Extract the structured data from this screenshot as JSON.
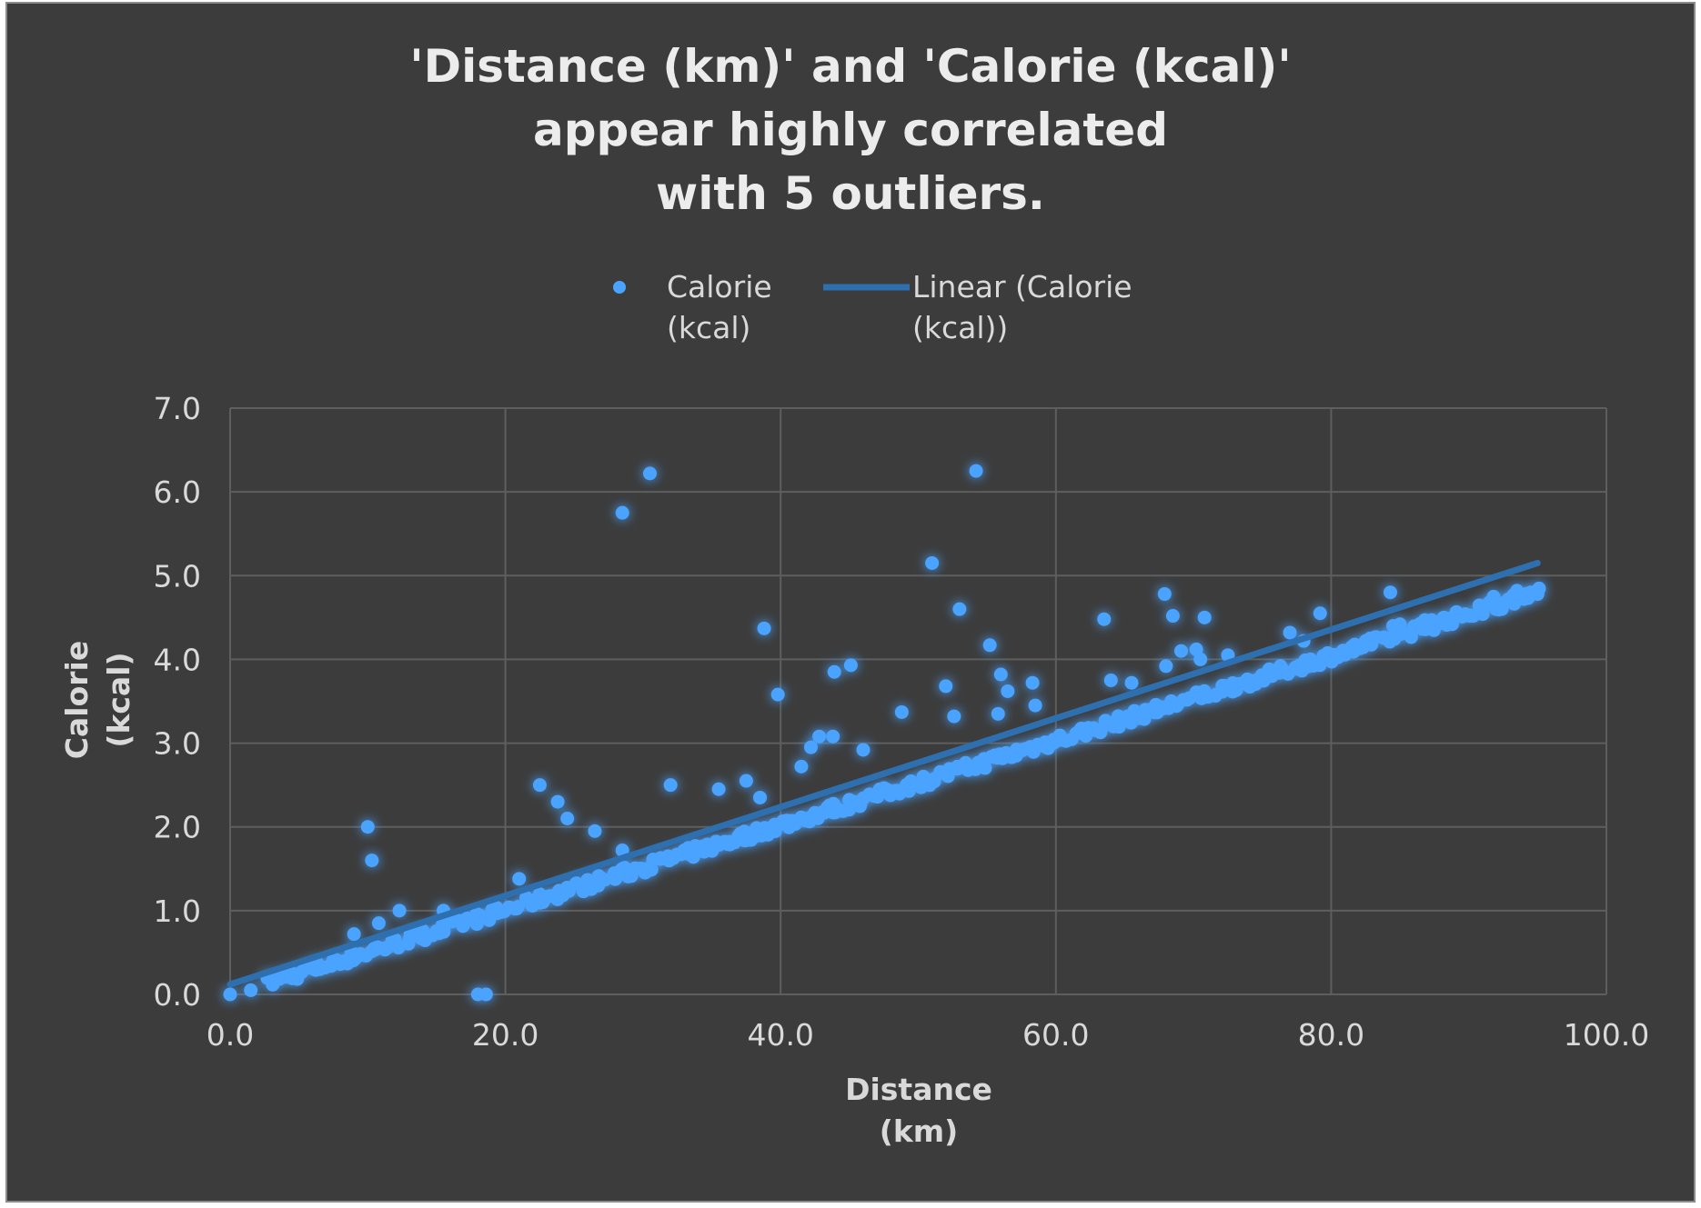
{
  "chart_data": {
    "type": "scatter",
    "title_lines": [
      "'Distance (km)' and 'Calorie (kcal)'",
      "appear highly correlated",
      "with 5 outliers."
    ],
    "xlabel_lines": [
      "Distance",
      "(km)"
    ],
    "ylabel_lines": [
      "Calorie",
      "(kcal)"
    ],
    "xlim": [
      0,
      100
    ],
    "ylim": [
      0,
      7
    ],
    "x_ticks": [
      "0.0",
      "20.0",
      "40.0",
      "60.0",
      "80.0",
      "100.0"
    ],
    "y_ticks": [
      "0.0",
      "1.0",
      "2.0",
      "3.0",
      "4.0",
      "5.0",
      "6.0",
      "7.0"
    ],
    "grid": true,
    "legend_placement": "top",
    "series": [
      {
        "name_lines": [
          "Calorie",
          "(kcal)"
        ],
        "color": "#4aa3ff",
        "trend_main": {
          "x_start": 3,
          "x_end": 95,
          "slope": 0.0505,
          "intercept": 0.0,
          "count": 420
        },
        "points": [
          [
            0,
            0
          ],
          [
            1.5,
            0.05
          ],
          [
            18,
            0
          ],
          [
            18.6,
            0
          ],
          [
            10,
            2.0
          ],
          [
            10.3,
            1.6
          ],
          [
            12.3,
            1.0
          ],
          [
            10.8,
            0.85
          ],
          [
            9,
            0.72
          ],
          [
            15.5,
            1.0
          ],
          [
            22.5,
            2.5
          ],
          [
            23.8,
            2.3
          ],
          [
            24.5,
            2.1
          ],
          [
            26.5,
            1.95
          ],
          [
            28.5,
            1.72
          ],
          [
            21,
            1.38
          ],
          [
            28.5,
            5.75
          ],
          [
            30.5,
            6.22
          ],
          [
            32,
            2.5
          ],
          [
            35.5,
            2.45
          ],
          [
            37.5,
            2.55
          ],
          [
            38.8,
            4.37
          ],
          [
            39.8,
            3.58
          ],
          [
            38.5,
            2.35
          ],
          [
            35,
            1.75
          ],
          [
            41.5,
            2.72
          ],
          [
            42.2,
            2.95
          ],
          [
            42.8,
            3.08
          ],
          [
            43.8,
            3.08
          ],
          [
            43.9,
            3.85
          ],
          [
            45.1,
            3.93
          ],
          [
            46,
            2.92
          ],
          [
            48.8,
            3.37
          ],
          [
            51,
            5.15
          ],
          [
            52,
            3.68
          ],
          [
            52.6,
            3.32
          ],
          [
            53,
            4.6
          ],
          [
            54.2,
            6.25
          ],
          [
            55.2,
            4.17
          ],
          [
            56,
            3.82
          ],
          [
            56.5,
            3.62
          ],
          [
            55.8,
            3.35
          ],
          [
            58.3,
            3.72
          ],
          [
            58.5,
            3.45
          ],
          [
            63.5,
            4.48
          ],
          [
            64,
            3.75
          ],
          [
            65.5,
            3.72
          ],
          [
            66.5,
            3.4
          ],
          [
            67.9,
            4.78
          ],
          [
            68.5,
            4.52
          ],
          [
            68,
            3.92
          ],
          [
            69.1,
            4.1
          ],
          [
            70.2,
            4.12
          ],
          [
            70.8,
            4.5
          ],
          [
            70.5,
            4.0
          ],
          [
            72.5,
            4.05
          ],
          [
            77,
            4.32
          ],
          [
            79.2,
            4.55
          ],
          [
            78,
            4.22
          ],
          [
            78.5,
            4.0
          ],
          [
            84.3,
            4.8
          ],
          [
            84.5,
            4.4
          ],
          [
            85,
            4.42
          ],
          [
            86.8,
            4.47
          ],
          [
            87.3,
            4.47
          ],
          [
            88.2,
            4.5
          ],
          [
            91.5,
            4.68
          ],
          [
            91.8,
            4.75
          ],
          [
            92.2,
            4.65
          ],
          [
            92.9,
            4.72
          ],
          [
            93.5,
            4.82
          ],
          [
            94,
            4.72
          ],
          [
            94.5,
            4.8
          ],
          [
            95,
            4.78
          ]
        ]
      },
      {
        "name_lines": [
          "Linear (Calorie",
          "(kcal))"
        ],
        "type": "trendline",
        "color": "#2e6fb0",
        "x": [
          0,
          95
        ],
        "y": [
          0.12,
          5.15
        ]
      }
    ]
  }
}
